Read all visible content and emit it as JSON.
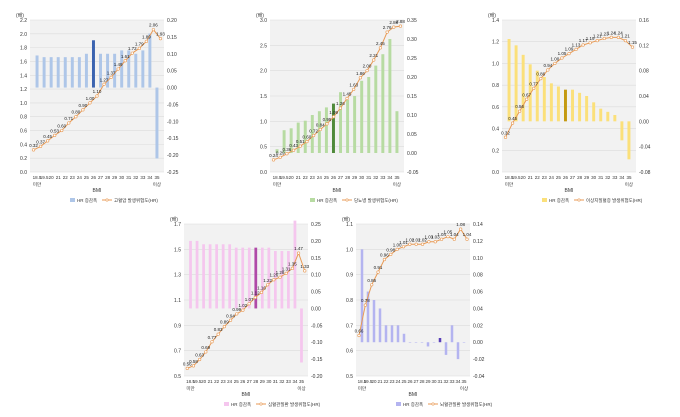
{
  "chart_data": [
    {
      "type": "bar",
      "xlabel": "BMI",
      "ylabel": "(배)",
      "categories": [
        "18.5",
        "18.5-",
        "20",
        "21",
        "22",
        "23",
        "24",
        "25",
        "26",
        "27",
        "28",
        "29",
        "30",
        "31",
        "32",
        "33",
        "34",
        "35"
      ],
      "category_labels": [
        "18.5",
        "19.5",
        "20",
        "21",
        "22",
        "23",
        "24",
        "25",
        "26",
        "27",
        "28",
        "29",
        "30",
        "31",
        "32",
        "33",
        "34",
        "35"
      ],
      "first_label_extra": "미만",
      "last_label_extra": "이상",
      "ylim": [
        0,
        2.2
      ],
      "y_ticks": [
        "0.0",
        "0.2",
        "0.4",
        "0.6",
        "0.8",
        "1.0",
        "1.2",
        "1.4",
        "1.6",
        "1.8",
        "2.0",
        "2.2"
      ],
      "y2lim": [
        -0.25,
        0.2
      ],
      "y2_ticks": [
        "-0.25",
        "-0.20",
        "-0.15",
        "-0.10",
        "-0.05",
        "0.00",
        "0.05",
        "0.10",
        "0.15",
        "0.20"
      ],
      "bars": [
        0.095,
        0.09,
        0.09,
        0.09,
        0.09,
        0.09,
        0.09,
        0.1,
        0.14,
        0.1,
        0.1,
        0.1,
        0.11,
        0.11,
        0.1,
        0.11,
        0.16,
        -0.21
      ],
      "highlight_index": 8,
      "line": [
        0.32,
        0.37,
        0.45,
        0.53,
        0.6,
        0.71,
        0.8,
        0.9,
        1.0,
        1.1,
        1.27,
        1.37,
        1.49,
        1.61,
        1.72,
        1.79,
        1.89,
        2.06,
        1.93
      ],
      "line_labels": [
        "0.32",
        "0.37",
        "0.45",
        "0.53",
        "0.60",
        "0.71",
        "0.80",
        "0.90",
        "1.00",
        "1.10",
        "1.27",
        "1.37",
        "1.49",
        "1.61",
        "1.72",
        "1.79",
        "1.89",
        "2.06",
        "1.93"
      ],
      "bar_color": "#aec6e8",
      "highlight_color": "#3b63b0",
      "legend": [
        "HR 증감폭",
        "고혈압 발생위험도(HR)"
      ]
    },
    {
      "type": "bar",
      "xlabel": "BMI",
      "ylabel": "(배)",
      "categories": [
        "18.5",
        "18.5-",
        "20",
        "21",
        "22",
        "23",
        "24",
        "25",
        "26",
        "27",
        "28",
        "29",
        "30",
        "31",
        "32",
        "33",
        "34",
        "35"
      ],
      "category_labels": [
        "18.5",
        "19.5",
        "20",
        "21",
        "22",
        "23",
        "24",
        "25",
        "26",
        "27",
        "28",
        "29",
        "30",
        "31",
        "32",
        "33",
        "34",
        "35"
      ],
      "first_label_extra": "미만",
      "last_label_extra": "이상",
      "ylim": [
        0,
        3.0
      ],
      "y_ticks": [
        "0.0",
        "0.5",
        "1.0",
        "1.5",
        "2.0",
        "2.5",
        "3.0"
      ],
      "y2lim": [
        -0.05,
        0.35
      ],
      "y2_ticks": [
        "-0.05",
        "0.00",
        "0.05",
        "0.10",
        "0.15",
        "0.20",
        "0.25",
        "0.30",
        "0.35"
      ],
      "bars": [
        0.01,
        0.06,
        0.065,
        0.08,
        0.085,
        0.1,
        0.11,
        0.12,
        0.13,
        0.16,
        0.14,
        0.15,
        0.19,
        0.2,
        0.23,
        0.26,
        0.3,
        0.11
      ],
      "highlight_index": 8,
      "line": [
        0.24,
        0.29,
        0.36,
        0.43,
        0.51,
        0.6,
        0.72,
        0.84,
        0.95,
        1.09,
        1.26,
        1.45,
        1.63,
        1.86,
        2.0,
        2.21,
        2.45,
        2.76,
        2.86,
        2.88
      ],
      "line_labels": [
        "0.24",
        "0.29",
        "0.36",
        "0.43",
        "0.51",
        "0.60",
        "0.72",
        "0.84",
        "0.95",
        "1.09",
        "1.26",
        "1.45",
        "1.63",
        "1.86",
        "2.00",
        "2.21",
        "2.45",
        "2.76",
        "2.86",
        "2.88"
      ],
      "bar_color": "#b7dba2",
      "highlight_color": "#4f8a3a",
      "legend": [
        "HR 증감폭",
        "당뇨병 발생위험도(HR)"
      ]
    },
    {
      "type": "bar",
      "xlabel": "BMI",
      "ylabel": "(배)",
      "categories": [
        "18.5",
        "18.5-",
        "20",
        "21",
        "22",
        "23",
        "24",
        "25",
        "26",
        "27",
        "28",
        "29",
        "30",
        "31",
        "32",
        "33",
        "34",
        "35"
      ],
      "category_labels": [
        "18.5",
        "19.5",
        "20",
        "21",
        "22",
        "23",
        "24",
        "25",
        "26",
        "27",
        "28",
        "29",
        "30",
        "31",
        "32",
        "33",
        "34",
        "35"
      ],
      "first_label_extra": "미만",
      "last_label_extra": "이상",
      "ylim": [
        0,
        1.4
      ],
      "y_ticks": [
        "0.0",
        "0.2",
        "0.4",
        "0.6",
        "0.8",
        "1.0",
        "1.2",
        "1.4"
      ],
      "y2lim": [
        -0.08,
        0.16
      ],
      "y2_ticks": [
        "-0.08",
        "-0.04",
        "0.00",
        "0.04",
        "0.08",
        "0.12",
        "0.16"
      ],
      "bars": [
        0.13,
        0.12,
        0.105,
        0.09,
        0.08,
        0.07,
        0.06,
        0.055,
        0.05,
        0.05,
        0.045,
        0.04,
        0.03,
        0.02,
        0.015,
        0.01,
        -0.03,
        -0.06
      ],
      "highlight_index": 8,
      "line": [
        0.32,
        0.45,
        0.56,
        0.67,
        0.77,
        0.86,
        0.94,
        1.0,
        1.05,
        1.09,
        1.13,
        1.17,
        1.19,
        1.21,
        1.23,
        1.24,
        1.24,
        1.21,
        1.15
      ],
      "line_labels": [
        "0.32",
        "0.45",
        "0.56",
        "0.67",
        "0.77",
        "0.86",
        "0.94",
        "1.00",
        "1.05",
        "1.09",
        "1.13",
        "1.17",
        "1.19",
        "1.21",
        "1.23",
        "1.24",
        "1.24",
        "1.21",
        "1.15"
      ],
      "bar_color": "#fbe07a",
      "highlight_color": "#c49a12",
      "legend": [
        "HR 증감폭",
        "이상지질혈증 발생위험도(HR)"
      ]
    },
    {
      "type": "bar",
      "xlabel": "BMI",
      "ylabel": "(배)",
      "categories": [
        "18.5",
        "18.5-",
        "20",
        "21",
        "22",
        "23",
        "24",
        "25",
        "26",
        "27",
        "28",
        "29",
        "30",
        "31",
        "32",
        "33",
        "34",
        "35"
      ],
      "category_labels": [
        "18.5",
        "19.5",
        "20",
        "21",
        "22",
        "23",
        "24",
        "25",
        "26",
        "27",
        "28",
        "29",
        "30",
        "31",
        "32",
        "33",
        "34",
        "35"
      ],
      "first_label_extra": "미만",
      "last_label_extra": "이상",
      "ylim": [
        0.5,
        1.7
      ],
      "y_ticks": [
        "0.5",
        "0.7",
        "0.9",
        "1.1",
        "1.3",
        "1.5",
        "1.7"
      ],
      "y2lim": [
        -0.2,
        0.25
      ],
      "y2_ticks": [
        "-0.20",
        "-0.15",
        "-0.10",
        "-0.05",
        "0.00",
        "0.05",
        "0.10",
        "0.15",
        "0.20",
        "0.25"
      ],
      "bars": [
        0.2,
        0.2,
        0.19,
        0.19,
        0.19,
        0.19,
        0.19,
        0.18,
        0.18,
        0.18,
        0.18,
        0.18,
        0.18,
        0.17,
        0.17,
        0.17,
        0.26,
        -0.16
      ],
      "highlight_index": 10,
      "line": [
        0.56,
        0.58,
        0.63,
        0.69,
        0.77,
        0.83,
        0.89,
        0.94,
        0.99,
        1.02,
        1.07,
        1.12,
        1.16,
        1.22,
        1.26,
        1.28,
        1.31,
        1.35,
        1.47,
        1.33
      ],
      "line_labels": [
        "0.56",
        "0.58",
        "0.63",
        "0.69",
        "0.77",
        "0.83",
        "0.89",
        "0.94",
        "0.99",
        "1.02",
        "1.07",
        "1.12",
        "1.16",
        "1.22",
        "1.26",
        "1.28",
        "1.31",
        "1.35",
        "1.47",
        "1.33"
      ],
      "bar_color": "#f5c6ee",
      "highlight_color": "#b04aa8",
      "legend": [
        "HR 증감폭",
        "심혈관질환 발생위험도(HR)"
      ]
    },
    {
      "type": "bar",
      "xlabel": "BMI",
      "ylabel": "(배)",
      "categories": [
        "18.5",
        "18.5-",
        "20",
        "21",
        "22",
        "23",
        "24",
        "25",
        "26",
        "27",
        "28",
        "29",
        "30",
        "31",
        "32",
        "33",
        "34",
        "35"
      ],
      "category_labels": [
        "18.5",
        "19.5",
        "20",
        "21",
        "22",
        "23",
        "24",
        "25",
        "26",
        "27",
        "28",
        "29",
        "30",
        "31",
        "32",
        "33",
        "34",
        "35"
      ],
      "first_label_extra": "미만",
      "last_label_extra": "이상",
      "ylim": [
        0.5,
        1.1
      ],
      "y_ticks": [
        "0.5",
        "0.6",
        "0.7",
        "0.8",
        "0.9",
        "1.0",
        "1.1"
      ],
      "y2lim": [
        -0.04,
        0.14
      ],
      "y2_ticks": [
        "-0.04",
        "-0.02",
        "0.00",
        "0.02",
        "0.04",
        "0.06",
        "0.08",
        "0.10",
        "0.12",
        "0.14"
      ],
      "bars": [
        0.11,
        0.06,
        0.05,
        0.04,
        0.02,
        0.02,
        0.02,
        0.01,
        0.0,
        0.0,
        0.0,
        -0.005,
        0.0,
        0.005,
        -0.015,
        0.02,
        -0.02,
        0.0
      ],
      "highlight_index": 13,
      "line": [
        0.66,
        0.78,
        0.86,
        0.91,
        0.96,
        0.98,
        1.0,
        1.01,
        1.02,
        1.02,
        1.02,
        1.03,
        1.03,
        1.04,
        1.05,
        1.04,
        1.08,
        1.04
      ],
      "line_labels": [
        "0.66",
        "0.78",
        "0.86",
        "0.91",
        "0.96",
        "0.98",
        "1.00",
        "1.01",
        "1.02",
        "1.02",
        "1.02",
        "1.03",
        "1.03",
        "1.04",
        "1.05",
        "1.04",
        "1.08",
        "1.04"
      ],
      "bar_color": "#b4b4f0",
      "highlight_color": "#5a3fb8",
      "legend": [
        "HR 증감폭",
        "뇌혈관질환 발생위험도(HR)"
      ]
    }
  ]
}
